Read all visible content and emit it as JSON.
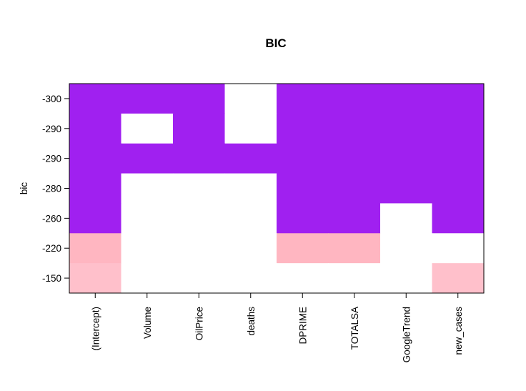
{
  "chart_data": {
    "type": "heatmap",
    "title": "BIC",
    "xlabel": "",
    "ylabel": "bic",
    "variables": [
      "(Intercept)",
      "Volume",
      "OilPrice",
      "deaths",
      "DPRIME",
      "TOTALSA",
      "GoogleTrend",
      "new_cases"
    ],
    "models": [
      {
        "bic_label": "-300",
        "color": "#A020F0",
        "included": [
          true,
          true,
          true,
          false,
          true,
          true,
          true,
          true
        ]
      },
      {
        "bic_label": "-290",
        "color": "#A020F0",
        "included": [
          true,
          false,
          true,
          false,
          true,
          true,
          true,
          true
        ]
      },
      {
        "bic_label": "-290",
        "color": "#A020F0",
        "included": [
          true,
          true,
          true,
          true,
          true,
          true,
          true,
          true
        ]
      },
      {
        "bic_label": "-280",
        "color": "#A020F0",
        "included": [
          true,
          false,
          false,
          false,
          true,
          true,
          true,
          true
        ]
      },
      {
        "bic_label": "-260",
        "color": "#A020F0",
        "included": [
          true,
          false,
          false,
          false,
          true,
          true,
          false,
          true
        ]
      },
      {
        "bic_label": "-220",
        "color": "#FFB6C1",
        "included": [
          true,
          false,
          false,
          false,
          true,
          true,
          false,
          false
        ]
      },
      {
        "bic_label": "-150",
        "color": "#FFC0CB",
        "included": [
          true,
          false,
          false,
          false,
          false,
          false,
          false,
          true
        ]
      }
    ]
  }
}
